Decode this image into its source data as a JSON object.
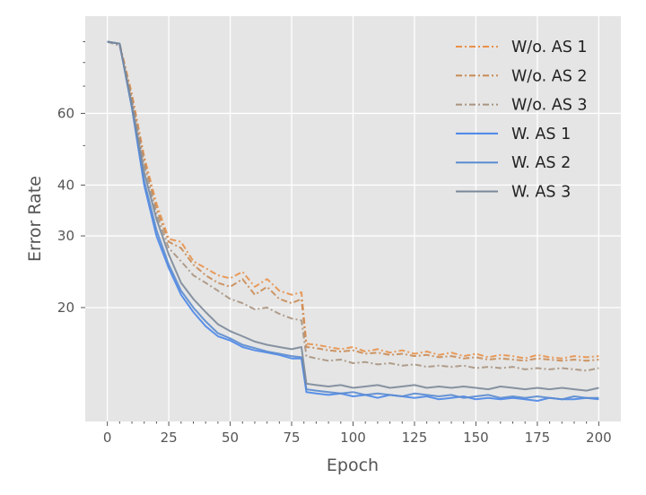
{
  "chart_data": {
    "type": "line",
    "title": "",
    "xlabel": "Epoch",
    "ylabel": "Error Rate",
    "yscale": "log",
    "xlim": [
      -9,
      209
    ],
    "ylim": [
      10.5,
      104
    ],
    "xticks": [
      0,
      25,
      50,
      75,
      100,
      125,
      150,
      175,
      200
    ],
    "xtick_labels": [
      "0",
      "25",
      "50",
      "75",
      "100",
      "125",
      "150",
      "175",
      "200"
    ],
    "yticks": [
      20,
      30,
      40,
      60
    ],
    "ytick_labels": [
      "20",
      "30",
      "40",
      "60"
    ],
    "yminor_ticks": [
      50,
      70,
      80,
      90
    ],
    "grid": true,
    "legend_position": "top-right",
    "x": [
      0,
      5,
      10,
      15,
      20,
      25,
      30,
      35,
      40,
      45,
      50,
      55,
      60,
      65,
      70,
      75,
      79,
      81,
      85,
      90,
      95,
      100,
      105,
      110,
      115,
      120,
      125,
      130,
      135,
      140,
      145,
      150,
      155,
      160,
      165,
      170,
      175,
      180,
      185,
      190,
      195,
      200
    ],
    "series": [
      {
        "name": "W/o. AS 1",
        "color": "#e8914a",
        "style": "dashdot",
        "values": [
          90,
          89,
          67,
          47,
          36,
          29.5,
          29,
          26,
          25,
          24,
          23.6,
          24.5,
          22.5,
          23.5,
          22,
          21.5,
          21.8,
          16.3,
          16.2,
          16.0,
          15.8,
          16.0,
          15.6,
          15.8,
          15.5,
          15.7,
          15.4,
          15.6,
          15.3,
          15.5,
          15.2,
          15.4,
          15.1,
          15.3,
          15.2,
          15.0,
          15.3,
          15.1,
          15.0,
          15.2,
          15.1,
          15.2
        ]
      },
      {
        "name": "W/o. AS 2",
        "color": "#c98b55",
        "style": "dashdot",
        "values": [
          90,
          89,
          66,
          46,
          35,
          29,
          28,
          25.5,
          24,
          23,
          22.5,
          23.5,
          21.5,
          22.5,
          21,
          20.5,
          21,
          16.0,
          15.9,
          15.7,
          15.6,
          15.7,
          15.4,
          15.5,
          15.3,
          15.4,
          15.2,
          15.3,
          15.1,
          15.2,
          15.0,
          15.1,
          14.9,
          15.0,
          14.9,
          14.8,
          15.0,
          14.9,
          14.8,
          14.9,
          14.8,
          14.9
        ]
      },
      {
        "name": "W/o. AS 3",
        "color": "#a8947f",
        "style": "dashdot",
        "values": [
          90,
          88,
          65,
          45,
          34,
          28,
          26,
          24,
          23,
          22,
          21,
          20.5,
          19.8,
          20,
          19.3,
          18.8,
          18.6,
          15.2,
          15.0,
          14.8,
          14.9,
          14.6,
          14.7,
          14.5,
          14.6,
          14.4,
          14.5,
          14.3,
          14.4,
          14.3,
          14.4,
          14.2,
          14.3,
          14.2,
          14.3,
          14.1,
          14.2,
          14.1,
          14.2,
          14.1,
          14.0,
          14.2
        ]
      },
      {
        "name": "W. AS 1",
        "color": "#4a86e8",
        "style": "solid",
        "values": [
          90,
          89,
          62,
          40,
          30,
          25,
          21.5,
          19.5,
          18,
          17,
          16.6,
          16,
          15.7,
          15.5,
          15.3,
          15.0,
          15.0,
          12.4,
          12.3,
          12.2,
          12.3,
          12.1,
          12.2,
          12.0,
          12.2,
          12.1,
          12.0,
          12.1,
          11.9,
          12.0,
          12.1,
          11.9,
          12.0,
          11.9,
          12.0,
          11.9,
          11.8,
          12.0,
          11.9,
          11.9,
          12.0,
          11.9
        ]
      },
      {
        "name": "W. AS 2",
        "color": "#5a8bd0",
        "style": "solid",
        "values": [
          90,
          89,
          62,
          41,
          31,
          25.5,
          22,
          20,
          18.5,
          17.3,
          16.8,
          16.2,
          15.9,
          15.6,
          15.4,
          15.2,
          15.1,
          12.6,
          12.5,
          12.4,
          12.3,
          12.4,
          12.2,
          12.3,
          12.2,
          12.1,
          12.3,
          12.2,
          12.1,
          12.2,
          12.0,
          12.1,
          12.2,
          12.0,
          12.1,
          12.0,
          12.1,
          12.0,
          11.9,
          12.1,
          12.0,
          12.0
        ]
      },
      {
        "name": "W. AS 3",
        "color": "#7b8899",
        "style": "solid",
        "values": [
          90,
          89,
          63,
          43,
          33,
          27,
          23,
          21,
          19.5,
          18.2,
          17.5,
          17,
          16.5,
          16.2,
          16,
          15.8,
          16,
          13.0,
          12.9,
          12.8,
          12.9,
          12.7,
          12.8,
          12.9,
          12.7,
          12.8,
          12.9,
          12.7,
          12.8,
          12.7,
          12.8,
          12.7,
          12.6,
          12.8,
          12.7,
          12.6,
          12.7,
          12.6,
          12.7,
          12.6,
          12.5,
          12.7
        ]
      }
    ]
  }
}
